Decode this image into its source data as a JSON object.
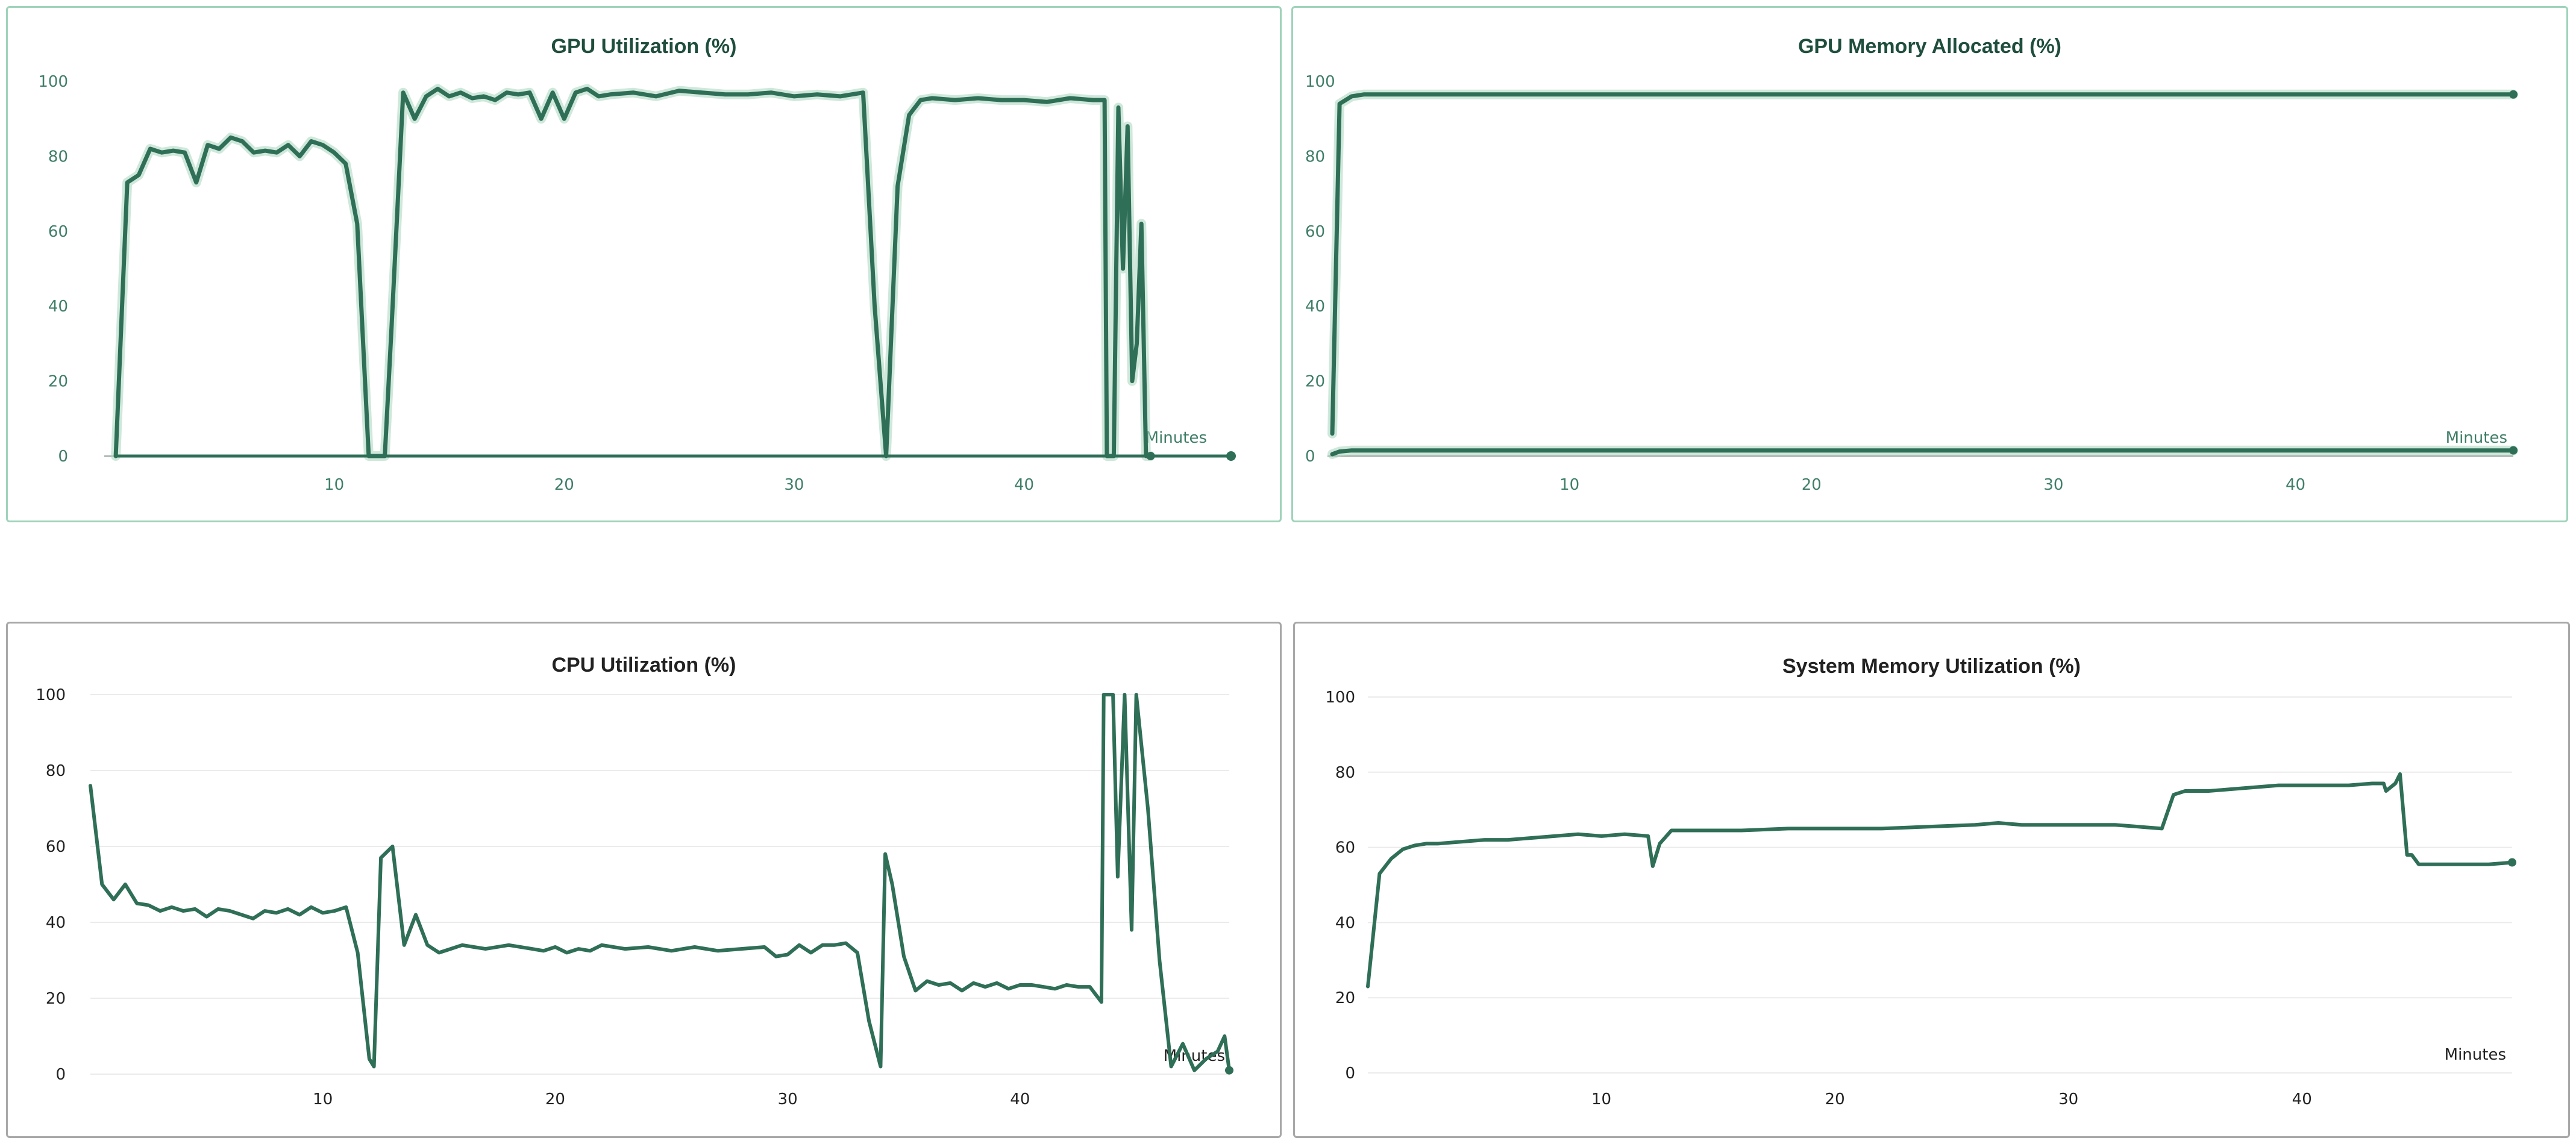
{
  "colors": {
    "line": "#2f6f57",
    "line_glow": "#a8d5bd",
    "grid": "#ebebeb",
    "grid_dashed": "#d9ece2",
    "axis": "#9aa5a0",
    "tick_text_green": "#3f7e67",
    "tick_text_dark": "#222222",
    "title_green": "#1f4e3d",
    "title_dark": "#222222",
    "border_green": "#9fd3ba",
    "border_gray": "#a8a8a8"
  },
  "chart_data": [
    {
      "id": "gpu-utilization",
      "type": "line",
      "title": "GPU Utilization (%)",
      "xlabel": "Minutes",
      "ylabel": "",
      "xlim": [
        0,
        49
      ],
      "ylim": [
        0,
        100
      ],
      "xticks": [
        10,
        20,
        30,
        40
      ],
      "yticks": [
        0,
        20,
        40,
        60,
        80,
        100
      ],
      "theme": "green",
      "series": [
        {
          "x": [
            0.5,
            1.0,
            1.5,
            2.0,
            2.5,
            3.0,
            3.5,
            4.0,
            4.5,
            5.0,
            5.5,
            6.0,
            6.5,
            7.0,
            7.5,
            8.0,
            8.5,
            9.0,
            9.5,
            10.0,
            10.5,
            11.0,
            11.5,
            12.0,
            12.2,
            12.5,
            13.0,
            13.5,
            14.0,
            14.5,
            15.0,
            15.5,
            16.0,
            16.5,
            17.0,
            17.5,
            18.0,
            18.5,
            19.0,
            19.5,
            20.0,
            20.5,
            21.0,
            21.5,
            22.0,
            23.0,
            24.0,
            25.0,
            26.0,
            27.0,
            28.0,
            29.0,
            30.0,
            31.0,
            32.0,
            33.0,
            33.5,
            34.0,
            34.5,
            35.0,
            35.5,
            36.0,
            37.0,
            38.0,
            39.0,
            40.0,
            41.0,
            42.0,
            43.0,
            43.5,
            43.6,
            43.9,
            44.1,
            44.3,
            44.5,
            44.7,
            44.9,
            45.1,
            45.3,
            45.5
          ],
          "y": [
            0,
            73,
            75,
            82,
            81,
            81.5,
            81,
            73,
            83,
            82,
            85,
            84,
            81,
            81.5,
            81,
            83,
            80,
            84,
            83,
            81,
            78,
            62,
            0,
            0,
            0,
            35,
            97,
            90,
            96,
            98,
            96,
            97,
            95.5,
            96,
            95,
            97,
            96.5,
            97,
            90,
            97,
            90,
            97,
            98,
            96,
            96.5,
            97,
            96,
            97.5,
            97,
            96.5,
            96.5,
            97,
            96,
            96.5,
            96,
            97,
            40,
            0,
            72,
            91,
            95,
            95.5,
            95,
            95.5,
            95,
            95,
            94.5,
            95.5,
            95,
            95,
            0,
            0,
            93,
            50,
            88,
            20,
            30,
            62,
            0,
            0
          ]
        }
      ]
    },
    {
      "id": "gpu-memory-allocated",
      "type": "line",
      "title": "GPU Memory Allocated (%)",
      "xlabel": "Minutes",
      "ylabel": "",
      "xlim": [
        0,
        49
      ],
      "ylim": [
        0,
        100
      ],
      "xticks": [
        10,
        20,
        30,
        40
      ],
      "yticks": [
        0,
        20,
        40,
        60,
        80,
        100
      ],
      "theme": "green",
      "series": [
        {
          "x": [
            0.2,
            0.5,
            1.0,
            1.5,
            2.0,
            5.0,
            10.0,
            20.0,
            30.0,
            40.0,
            49.0
          ],
          "y": [
            6,
            94,
            96,
            96.5,
            96.5,
            96.5,
            96.5,
            96.5,
            96.5,
            96.5,
            96.5
          ]
        },
        {
          "x": [
            0.2,
            0.5,
            1.0,
            2.0,
            10.0,
            20.0,
            30.0,
            40.0,
            49.0
          ],
          "y": [
            0.5,
            1.2,
            1.5,
            1.5,
            1.5,
            1.5,
            1.5,
            1.5,
            1.5
          ]
        }
      ]
    },
    {
      "id": "cpu-utilization",
      "type": "line",
      "title": "CPU Utilization (%)",
      "xlabel": "Minutes",
      "ylabel": "",
      "xlim": [
        0,
        49
      ],
      "ylim": [
        0,
        100
      ],
      "xticks": [
        10,
        20,
        30,
        40
      ],
      "yticks": [
        0,
        20,
        40,
        60,
        80,
        100
      ],
      "theme": "gray",
      "series": [
        {
          "x": [
            0.0,
            0.5,
            1.0,
            1.5,
            2.0,
            2.5,
            3.0,
            3.5,
            4.0,
            4.5,
            5.0,
            5.5,
            6.0,
            6.5,
            7.0,
            7.5,
            8.0,
            8.5,
            9.0,
            9.5,
            10.0,
            10.5,
            11.0,
            11.5,
            12.0,
            12.2,
            12.5,
            13.0,
            13.5,
            14.0,
            14.5,
            15.0,
            15.5,
            16.0,
            16.5,
            17.0,
            18.0,
            19.0,
            19.5,
            20.0,
            20.5,
            21.0,
            21.5,
            22.0,
            23.0,
            24.0,
            25.0,
            26.0,
            27.0,
            28.0,
            29.0,
            29.5,
            30.0,
            30.5,
            31.0,
            31.5,
            32.0,
            32.5,
            33.0,
            33.5,
            34.0,
            34.2,
            34.5,
            35.0,
            35.5,
            36.0,
            36.5,
            37.0,
            37.5,
            38.0,
            38.5,
            39.0,
            39.5,
            40.0,
            40.5,
            41.0,
            41.5,
            42.0,
            42.5,
            43.0,
            43.5,
            43.6,
            44.0,
            44.2,
            44.5,
            44.8,
            45.0,
            45.5,
            46.0,
            46.5,
            47.0,
            47.5,
            48.0,
            48.5,
            48.8,
            49.0
          ],
          "y": [
            76,
            50,
            46,
            50,
            45,
            44.5,
            43,
            44,
            43,
            43.5,
            41.5,
            43.5,
            43,
            42,
            41,
            43,
            42.5,
            43.5,
            42,
            44,
            42.5,
            43,
            44,
            32,
            4,
            2,
            57,
            60,
            34,
            42,
            34,
            32,
            33,
            34,
            33.5,
            33,
            34,
            33,
            32.5,
            33.5,
            32,
            33,
            32.5,
            34,
            33,
            33.5,
            32.5,
            33.5,
            32.5,
            33,
            33.5,
            31,
            31.5,
            34,
            32,
            34,
            34,
            34.5,
            32,
            14,
            2,
            58,
            50,
            31,
            22,
            24.5,
            23.5,
            24,
            22,
            24,
            23,
            24,
            22.5,
            23.5,
            23.5,
            23,
            22.5,
            23.5,
            23,
            23,
            19,
            100,
            100,
            52,
            100,
            38,
            100,
            70,
            30,
            2,
            8,
            1,
            4,
            6,
            10,
            1
          ]
        }
      ]
    },
    {
      "id": "system-memory-utilization",
      "type": "line",
      "title": "System Memory Utilization (%)",
      "xlabel": "Minutes",
      "ylabel": "",
      "xlim": [
        0,
        49
      ],
      "ylim": [
        0,
        100
      ],
      "xticks": [
        10,
        20,
        30,
        40
      ],
      "yticks": [
        0,
        20,
        40,
        60,
        80,
        100
      ],
      "theme": "gray",
      "series": [
        {
          "x": [
            0.0,
            0.5,
            1.0,
            1.5,
            2.0,
            2.5,
            3.0,
            4.0,
            5.0,
            6.0,
            7.0,
            8.0,
            9.0,
            10.0,
            11.0,
            12.0,
            12.2,
            12.5,
            13.0,
            14.0,
            15.0,
            16.0,
            18.0,
            20.0,
            22.0,
            24.0,
            26.0,
            27.0,
            28.0,
            30.0,
            32.0,
            33.0,
            34.0,
            34.5,
            35.0,
            36.0,
            37.0,
            38.0,
            39.0,
            40.0,
            41.0,
            42.0,
            43.0,
            43.5,
            43.6,
            44.0,
            44.2,
            44.5,
            44.7,
            45.0,
            46.0,
            47.0,
            48.0,
            49.0
          ],
          "y": [
            23,
            53,
            57,
            59.5,
            60.5,
            61,
            61,
            61.5,
            62,
            62,
            62.5,
            63,
            63.5,
            63,
            63.5,
            63,
            55,
            61,
            64.5,
            64.5,
            64.5,
            64.5,
            65,
            65,
            65,
            65.5,
            66,
            66.5,
            66,
            66,
            66,
            65.5,
            65,
            74,
            75,
            75,
            75.5,
            76,
            76.5,
            76.5,
            76.5,
            76.5,
            77,
            77,
            75,
            77,
            79.5,
            58,
            58,
            55.5,
            55.5,
            55.5,
            55.5,
            56
          ]
        }
      ]
    }
  ]
}
